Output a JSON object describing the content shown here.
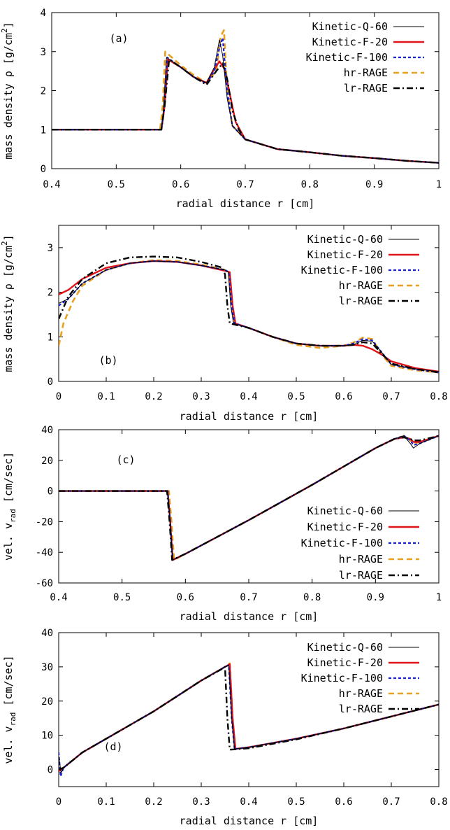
{
  "chart_data": [
    {
      "type": "line",
      "panel_label": "(a)",
      "xlabel": "radial distance r [cm]",
      "ylabel": "mass density ρ [g/cm²]",
      "xlim": [
        0.4,
        1.0
      ],
      "ylim": [
        0,
        4
      ],
      "xticks": [
        "0.4",
        "0.5",
        "0.6",
        "0.7",
        "0.8",
        "0.9",
        "1"
      ],
      "yticks": [
        "0",
        "1",
        "2",
        "3",
        "4"
      ],
      "grid": false,
      "legend_position": "top-right",
      "series": [
        {
          "name": "Kinetic-Q-60",
          "color": "#000000",
          "style": "solid-thin",
          "x": [
            0.4,
            0.5,
            0.57,
            0.573,
            0.578,
            0.6,
            0.62,
            0.64,
            0.652,
            0.66,
            0.665,
            0.672,
            0.68,
            0.7,
            0.75,
            0.8,
            0.85,
            0.9,
            0.95,
            1.0
          ],
          "y": [
            1.0,
            1.0,
            1.0,
            1.5,
            2.85,
            2.6,
            2.35,
            2.2,
            2.6,
            3.3,
            2.9,
            1.8,
            1.1,
            0.75,
            0.5,
            0.42,
            0.33,
            0.27,
            0.2,
            0.15
          ]
        },
        {
          "name": "Kinetic-F-20",
          "color": "#e0141b",
          "style": "solid-thick",
          "x": [
            0.4,
            0.5,
            0.57,
            0.575,
            0.58,
            0.6,
            0.62,
            0.64,
            0.65,
            0.66,
            0.668,
            0.675,
            0.685,
            0.7,
            0.75,
            0.8,
            0.85,
            0.9,
            0.95,
            1.0
          ],
          "y": [
            1.0,
            1.0,
            1.0,
            1.6,
            2.8,
            2.6,
            2.35,
            2.2,
            2.5,
            2.75,
            2.55,
            2.0,
            1.2,
            0.75,
            0.5,
            0.42,
            0.33,
            0.27,
            0.2,
            0.15
          ]
        },
        {
          "name": "Kinetic-F-100",
          "color": "#1a22d6",
          "style": "dash",
          "x": [
            0.4,
            0.5,
            0.57,
            0.574,
            0.579,
            0.6,
            0.62,
            0.64,
            0.652,
            0.66,
            0.665,
            0.672,
            0.68,
            0.7,
            0.75,
            0.8,
            0.85,
            0.9,
            0.95,
            1.0
          ],
          "y": [
            1.0,
            1.0,
            1.0,
            1.5,
            2.85,
            2.6,
            2.35,
            2.18,
            2.5,
            3.1,
            3.35,
            2.0,
            1.1,
            0.75,
            0.5,
            0.42,
            0.33,
            0.27,
            0.2,
            0.15
          ]
        },
        {
          "name": "hr-RAGE",
          "color": "#e8a020",
          "style": "long-dash",
          "x": [
            0.4,
            0.5,
            0.568,
            0.572,
            0.576,
            0.6,
            0.62,
            0.64,
            0.655,
            0.662,
            0.667,
            0.672,
            0.68,
            0.7,
            0.75,
            0.8,
            0.85,
            0.9,
            0.95,
            1.0
          ],
          "y": [
            1.0,
            1.0,
            1.0,
            1.6,
            3.0,
            2.65,
            2.4,
            2.2,
            2.5,
            3.4,
            3.55,
            2.0,
            1.1,
            0.75,
            0.5,
            0.42,
            0.33,
            0.27,
            0.2,
            0.15
          ]
        },
        {
          "name": "lr-RAGE",
          "color": "#000000",
          "style": "dash-dot",
          "x": [
            0.4,
            0.5,
            0.57,
            0.575,
            0.582,
            0.6,
            0.62,
            0.64,
            0.655,
            0.665,
            0.672,
            0.68,
            0.69,
            0.7,
            0.75,
            0.8,
            0.85,
            0.9,
            0.95,
            1.0
          ],
          "y": [
            1.0,
            1.0,
            1.0,
            1.6,
            2.8,
            2.6,
            2.35,
            2.15,
            2.5,
            2.7,
            2.3,
            1.5,
            1.0,
            0.75,
            0.5,
            0.42,
            0.33,
            0.27,
            0.2,
            0.15
          ]
        }
      ]
    },
    {
      "type": "line",
      "panel_label": "(b)",
      "xlabel": "radial distance r [cm]",
      "ylabel": "mass density ρ [g/cm²]",
      "xlim": [
        0,
        0.8
      ],
      "ylim": [
        0,
        3.5
      ],
      "xticks": [
        "0",
        "0.1",
        "0.2",
        "0.3",
        "0.4",
        "0.5",
        "0.6",
        "0.7",
        "0.8"
      ],
      "yticks": [
        "0",
        "1",
        "2",
        "3"
      ],
      "grid": false,
      "legend_position": "top-right",
      "series": [
        {
          "name": "Kinetic-Q-60",
          "color": "#000000",
          "style": "solid-thin",
          "x": [
            0.0,
            0.02,
            0.05,
            0.1,
            0.15,
            0.2,
            0.25,
            0.3,
            0.35,
            0.357,
            0.362,
            0.368,
            0.4,
            0.45,
            0.5,
            0.55,
            0.6,
            0.62,
            0.64,
            0.66,
            0.68,
            0.7,
            0.75,
            0.8
          ],
          "y": [
            1.75,
            1.85,
            2.2,
            2.5,
            2.65,
            2.7,
            2.68,
            2.6,
            2.5,
            2.45,
            1.7,
            1.3,
            1.2,
            1.0,
            0.85,
            0.8,
            0.8,
            0.82,
            0.92,
            0.9,
            0.65,
            0.38,
            0.28,
            0.22
          ]
        },
        {
          "name": "Kinetic-F-20",
          "color": "#e0141b",
          "style": "solid-thick",
          "x": [
            0.0,
            0.02,
            0.05,
            0.1,
            0.15,
            0.2,
            0.25,
            0.3,
            0.35,
            0.36,
            0.366,
            0.372,
            0.4,
            0.45,
            0.5,
            0.55,
            0.6,
            0.62,
            0.64,
            0.66,
            0.68,
            0.7,
            0.75,
            0.8
          ],
          "y": [
            1.95,
            2.05,
            2.3,
            2.55,
            2.65,
            2.7,
            2.68,
            2.6,
            2.48,
            2.45,
            1.7,
            1.3,
            1.2,
            1.0,
            0.85,
            0.8,
            0.8,
            0.82,
            0.8,
            0.72,
            0.6,
            0.45,
            0.3,
            0.22
          ]
        },
        {
          "name": "Kinetic-F-100",
          "color": "#1a22d6",
          "style": "dash",
          "x": [
            0.0,
            0.02,
            0.05,
            0.1,
            0.15,
            0.2,
            0.25,
            0.3,
            0.35,
            0.358,
            0.364,
            0.37,
            0.4,
            0.45,
            0.5,
            0.55,
            0.6,
            0.62,
            0.64,
            0.66,
            0.68,
            0.7,
            0.75,
            0.8
          ],
          "y": [
            1.7,
            1.85,
            2.2,
            2.5,
            2.65,
            2.7,
            2.68,
            2.6,
            2.5,
            2.45,
            1.7,
            1.3,
            1.2,
            1.0,
            0.85,
            0.8,
            0.8,
            0.85,
            0.95,
            0.92,
            0.65,
            0.38,
            0.27,
            0.2
          ]
        },
        {
          "name": "hr-RAGE",
          "color": "#e8a020",
          "style": "long-dash",
          "x": [
            0.0,
            0.01,
            0.03,
            0.05,
            0.1,
            0.15,
            0.2,
            0.25,
            0.3,
            0.35,
            0.358,
            0.364,
            0.37,
            0.4,
            0.45,
            0.5,
            0.55,
            0.6,
            0.62,
            0.64,
            0.66,
            0.68,
            0.7,
            0.75,
            0.8
          ],
          "y": [
            0.8,
            1.3,
            1.8,
            2.15,
            2.5,
            2.65,
            2.72,
            2.7,
            2.62,
            2.5,
            2.45,
            1.7,
            1.3,
            1.2,
            1.0,
            0.82,
            0.75,
            0.8,
            0.87,
            0.98,
            0.95,
            0.6,
            0.35,
            0.25,
            0.2
          ]
        },
        {
          "name": "lr-RAGE",
          "color": "#000000",
          "style": "dash-dot",
          "x": [
            0.0,
            0.02,
            0.05,
            0.1,
            0.15,
            0.2,
            0.25,
            0.3,
            0.345,
            0.35,
            0.355,
            0.36,
            0.4,
            0.45,
            0.5,
            0.55,
            0.6,
            0.62,
            0.64,
            0.66,
            0.68,
            0.7,
            0.75,
            0.8
          ],
          "y": [
            1.4,
            1.9,
            2.3,
            2.65,
            2.78,
            2.8,
            2.78,
            2.68,
            2.55,
            2.4,
            1.7,
            1.3,
            1.2,
            1.0,
            0.85,
            0.8,
            0.8,
            0.82,
            0.88,
            0.85,
            0.62,
            0.4,
            0.28,
            0.2
          ]
        }
      ]
    },
    {
      "type": "line",
      "panel_label": "(c)",
      "xlabel": "radial distance r [cm]",
      "ylabel": "vel. v_rad [cm/sec]",
      "xlim": [
        0.4,
        1.0
      ],
      "ylim": [
        -60,
        40
      ],
      "xticks": [
        "0.4",
        "0.5",
        "0.6",
        "0.7",
        "0.8",
        "0.9",
        "1"
      ],
      "yticks": [
        "-60",
        "-40",
        "-20",
        "0",
        "20",
        "40"
      ],
      "grid": false,
      "legend_position": "bottom-right",
      "series": [
        {
          "name": "Kinetic-Q-60",
          "color": "#000000",
          "style": "solid-thin",
          "x": [
            0.4,
            0.5,
            0.572,
            0.576,
            0.58,
            0.6,
            0.7,
            0.8,
            0.9,
            0.93,
            0.945,
            0.955,
            0.96,
            0.97,
            1.0
          ],
          "y": [
            0,
            0,
            0,
            -20,
            -45,
            -41,
            -19,
            4,
            28,
            34,
            36,
            31,
            28,
            31,
            36
          ]
        },
        {
          "name": "Kinetic-F-20",
          "color": "#e0141b",
          "style": "solid-thick",
          "x": [
            0.4,
            0.5,
            0.572,
            0.576,
            0.58,
            0.6,
            0.7,
            0.8,
            0.9,
            0.93,
            0.945,
            0.955,
            0.96,
            0.97,
            1.0
          ],
          "y": [
            0,
            0,
            0,
            -20,
            -45,
            -41,
            -19,
            4,
            28,
            34,
            35,
            34,
            32,
            32,
            36
          ]
        },
        {
          "name": "Kinetic-F-100",
          "color": "#1a22d6",
          "style": "dash",
          "x": [
            0.4,
            0.5,
            0.572,
            0.576,
            0.58,
            0.6,
            0.7,
            0.8,
            0.9,
            0.93,
            0.945,
            0.955,
            0.96,
            0.97,
            1.0
          ],
          "y": [
            0,
            0,
            0,
            -20,
            -45,
            -41,
            -19,
            4,
            28,
            34,
            36,
            33,
            30,
            31,
            36
          ]
        },
        {
          "name": "hr-RAGE",
          "color": "#e8a020",
          "style": "long-dash",
          "x": [
            0.4,
            0.5,
            0.574,
            0.578,
            0.582,
            0.6,
            0.7,
            0.8,
            0.9,
            0.93,
            0.945,
            0.955,
            0.96,
            0.97,
            1.0
          ],
          "y": [
            0,
            0,
            0,
            -20,
            -45,
            -41,
            -19,
            4,
            28,
            34,
            36,
            33,
            31,
            32,
            36
          ]
        },
        {
          "name": "lr-RAGE",
          "color": "#000000",
          "style": "dash-dot",
          "x": [
            0.4,
            0.5,
            0.571,
            0.575,
            0.579,
            0.6,
            0.7,
            0.8,
            0.9,
            0.93,
            0.945,
            0.955,
            0.96,
            0.97,
            1.0
          ],
          "y": [
            0,
            0,
            0,
            -20,
            -45,
            -41,
            -19,
            4,
            28,
            34,
            35,
            34,
            33,
            33,
            36
          ]
        }
      ]
    },
    {
      "type": "line",
      "panel_label": "(d)",
      "xlabel": "radial distance r [cm]",
      "ylabel": "vel. v_rad [cm/sec]",
      "xlim": [
        0,
        0.8
      ],
      "ylim": [
        -5,
        40
      ],
      "xticks": [
        "0",
        "0.1",
        "0.2",
        "0.3",
        "0.4",
        "0.5",
        "0.6",
        "0.7",
        "0.8"
      ],
      "yticks": [
        "0",
        "10",
        "20",
        "30",
        "40"
      ],
      "grid": false,
      "legend_position": "top-right",
      "series": [
        {
          "name": "Kinetic-Q-60",
          "color": "#000000",
          "style": "solid-thin",
          "x": [
            0.0,
            0.005,
            0.01,
            0.05,
            0.1,
            0.15,
            0.2,
            0.25,
            0.3,
            0.35,
            0.358,
            0.364,
            0.37,
            0.4,
            0.5,
            0.6,
            0.7,
            0.8
          ],
          "y": [
            4,
            -1,
            0.5,
            5,
            9,
            13,
            17,
            21.5,
            26,
            30,
            30.5,
            15,
            6,
            6.5,
            9,
            12,
            15.5,
            19
          ]
        },
        {
          "name": "Kinetic-F-20",
          "color": "#e0141b",
          "style": "solid-thick",
          "x": [
            0.0,
            0.01,
            0.05,
            0.1,
            0.15,
            0.2,
            0.25,
            0.3,
            0.35,
            0.36,
            0.366,
            0.372,
            0.4,
            0.5,
            0.6,
            0.7,
            0.8
          ],
          "y": [
            -0.5,
            0.5,
            5,
            9,
            13,
            17,
            21.5,
            26,
            30,
            30.8,
            15,
            6,
            6.5,
            9,
            12,
            15.5,
            19
          ]
        },
        {
          "name": "Kinetic-F-100",
          "color": "#1a22d6",
          "style": "dash",
          "x": [
            0.0,
            0.004,
            0.01,
            0.05,
            0.1,
            0.15,
            0.2,
            0.25,
            0.3,
            0.35,
            0.358,
            0.364,
            0.37,
            0.4,
            0.5,
            0.6,
            0.7,
            0.8
          ],
          "y": [
            5,
            -2,
            0.5,
            5,
            9,
            13,
            17,
            21.5,
            26,
            30,
            30.5,
            15,
            6,
            6.5,
            9,
            12,
            15.5,
            19
          ]
        },
        {
          "name": "hr-RAGE",
          "color": "#e8a020",
          "style": "long-dash",
          "x": [
            0.0,
            0.01,
            0.05,
            0.1,
            0.15,
            0.2,
            0.25,
            0.3,
            0.35,
            0.36,
            0.366,
            0.372,
            0.4,
            0.5,
            0.6,
            0.7,
            0.8
          ],
          "y": [
            0,
            0.5,
            5,
            9,
            13,
            17,
            21.5,
            26,
            30,
            31,
            15,
            6,
            6.5,
            9,
            12,
            15.5,
            19
          ]
        },
        {
          "name": "lr-RAGE",
          "color": "#000000",
          "style": "dash-dot",
          "x": [
            0.0,
            0.01,
            0.05,
            0.1,
            0.15,
            0.2,
            0.25,
            0.3,
            0.345,
            0.35,
            0.355,
            0.36,
            0.4,
            0.5,
            0.6,
            0.7,
            0.8
          ],
          "y": [
            0,
            0.5,
            5,
            9,
            13,
            17,
            21.5,
            26,
            29.5,
            30,
            15,
            5.8,
            6.2,
            8.8,
            12,
            15.5,
            19
          ]
        }
      ]
    }
  ]
}
